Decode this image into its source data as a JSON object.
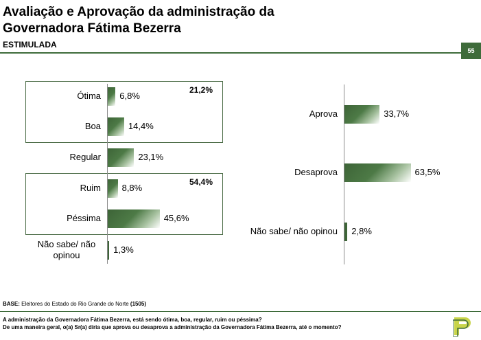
{
  "header": {
    "title_line1": "Avaliação e Aprovação da administração da",
    "title_line2": "Governadora Fátima Bezerra",
    "subtitle": "ESTIMULADA",
    "page_number": "55"
  },
  "chart_data": [
    {
      "type": "bar",
      "orientation": "horizontal",
      "categories": [
        "Ótima",
        "Boa",
        "Regular",
        "Ruim",
        "Péssima",
        "Não sabe/ não opinou"
      ],
      "values": [
        6.8,
        14.4,
        23.1,
        8.8,
        45.6,
        1.3
      ],
      "value_labels": [
        "6,8%",
        "14,4%",
        "23,1%",
        "8,8%",
        "45,6%",
        "1,3%"
      ],
      "groups": [
        {
          "members": [
            "Ótima",
            "Boa"
          ],
          "total_label": "21,2%"
        },
        {
          "members": [
            "Ruim",
            "Péssima"
          ],
          "total_label": "54,4%"
        }
      ],
      "bar_color": "#3d6437"
    },
    {
      "type": "bar",
      "orientation": "horizontal",
      "categories": [
        "Aprova",
        "Desaprova",
        "Não sabe/ não opinou"
      ],
      "values": [
        33.7,
        63.5,
        2.8
      ],
      "value_labels": [
        "33,7%",
        "63,5%",
        "2,8%"
      ],
      "bar_color": "#3d6437"
    }
  ],
  "footer": {
    "base_label": "BASE:",
    "base_text": "Eleitores do Estado do Rio Grande do Norte",
    "base_n": "(1505)",
    "question1": "A administração da Governadora Fátima Bezerra, está sendo ótima, boa, regular, ruim ou péssima?",
    "question2": "De uma maneira geral, o(a) Sr(a) diria que aprova ou desaprova a administração da Governadora Fátima Bezerra, até o momento?"
  }
}
